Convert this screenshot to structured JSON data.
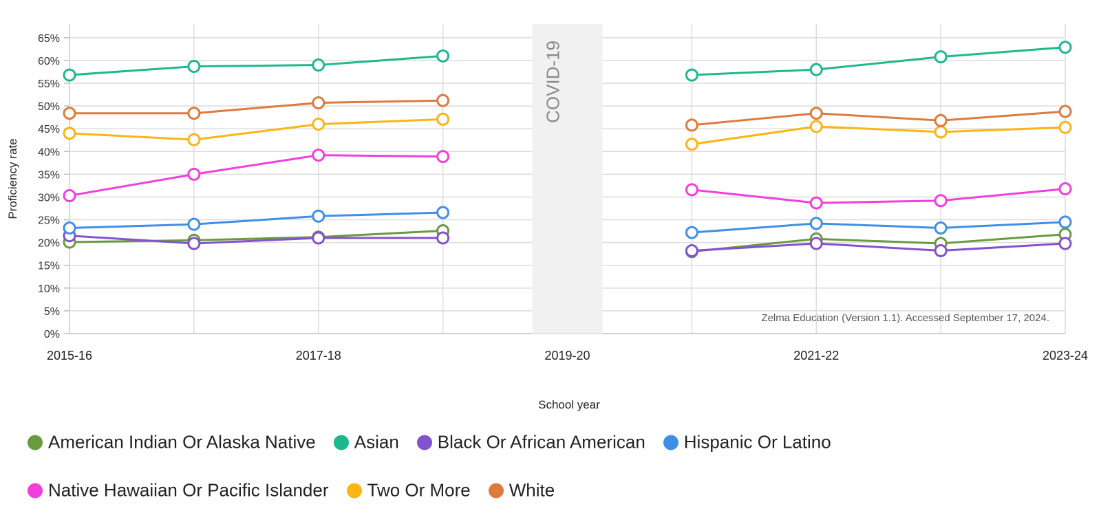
{
  "chart_data": {
    "type": "line",
    "xlabel": "School year",
    "ylabel": "Proficiency rate",
    "x": [
      "2015-16",
      "2016-17",
      "2017-18",
      "2018-19",
      "2019-20",
      "2020-21",
      "2021-22",
      "2022-23",
      "2023-24"
    ],
    "x_tick_labels": [
      "2015-16",
      "2017-18",
      "2019-20",
      "2021-22",
      "2023-24"
    ],
    "y_ticks": [
      "0%",
      "5%",
      "10%",
      "15%",
      "20%",
      "25%",
      "30%",
      "35%",
      "40%",
      "45%",
      "50%",
      "55%",
      "60%",
      "65%"
    ],
    "ylim": [
      0,
      0.68
    ],
    "grid": true,
    "legend_position": "bottom",
    "annotations": {
      "covid_band": {
        "x": "2019-20",
        "label": "COVID-19"
      },
      "source": "Zelma Education (Version 1.1). Accessed September 17, 2024."
    },
    "series": [
      {
        "name": "American Indian Or Alaska Native",
        "color": "#6a9a3e",
        "values": [
          0.201,
          0.205,
          0.212,
          0.226,
          null,
          0.18,
          0.208,
          0.198,
          0.218
        ]
      },
      {
        "name": "Asian",
        "color": "#1db98d",
        "values": [
          0.568,
          0.587,
          0.59,
          0.61,
          null,
          0.568,
          0.58,
          0.608,
          0.629
        ]
      },
      {
        "name": "Black Or African American",
        "color": "#8452cf",
        "values": [
          0.215,
          0.198,
          0.21,
          0.21,
          null,
          0.182,
          0.198,
          0.182,
          0.198
        ]
      },
      {
        "name": "Hispanic Or Latino",
        "color": "#3f8fe8",
        "values": [
          0.232,
          0.24,
          0.258,
          0.266,
          null,
          0.222,
          0.242,
          0.232,
          0.245
        ]
      },
      {
        "name": "Native Hawaiian Or Pacific Islander",
        "color": "#f23fdb",
        "values": [
          0.303,
          0.35,
          0.392,
          0.389,
          null,
          0.316,
          0.287,
          0.292,
          0.318
        ]
      },
      {
        "name": "Two Or More",
        "color": "#fbb514",
        "values": [
          0.44,
          0.426,
          0.46,
          0.471,
          null,
          0.416,
          0.455,
          0.443,
          0.453
        ]
      },
      {
        "name": "White",
        "color": "#de7a3c",
        "values": [
          0.484,
          0.484,
          0.507,
          0.512,
          null,
          0.458,
          0.484,
          0.468,
          0.488
        ]
      }
    ]
  }
}
